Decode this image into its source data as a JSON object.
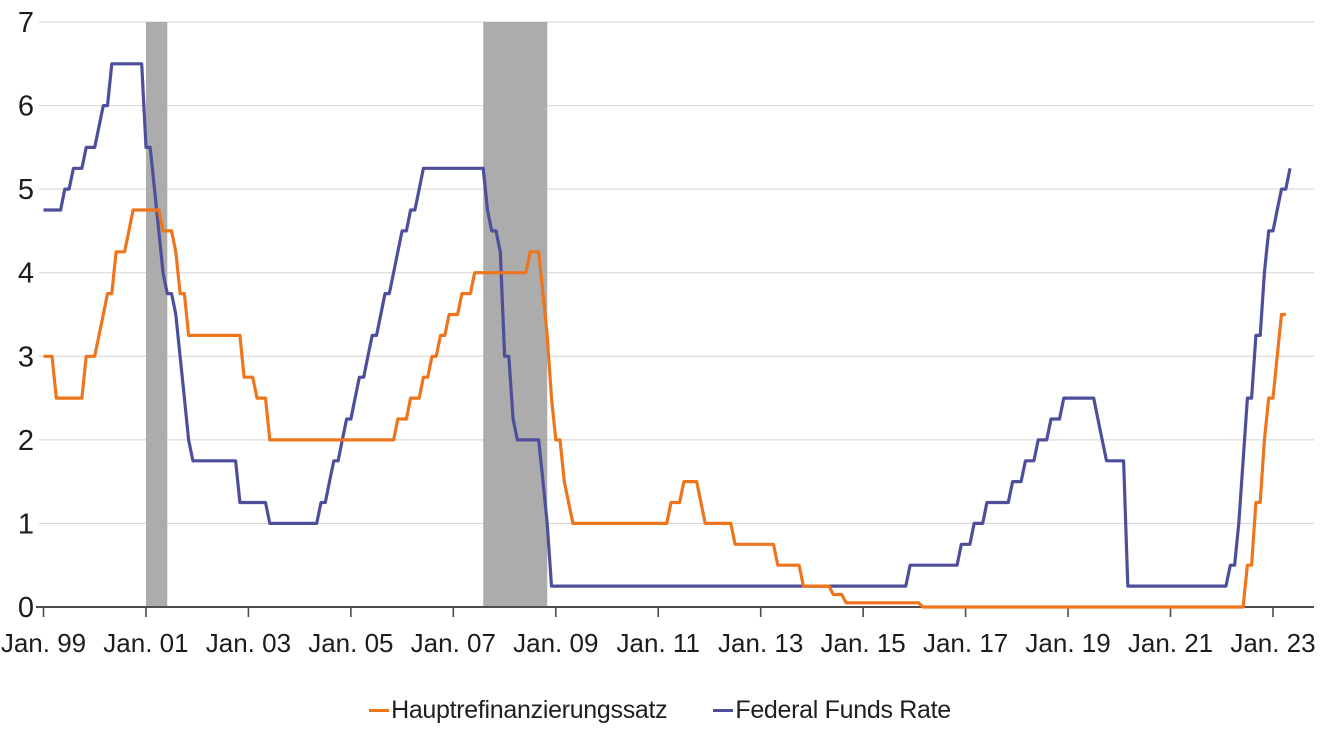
{
  "page": {
    "background": "#ffffff"
  },
  "chart_data": {
    "type": "line",
    "title": "",
    "xlabel": "",
    "ylabel": "",
    "y_axis": {
      "min": 0,
      "max": 7,
      "ticks": [
        "0",
        "1",
        "2",
        "3",
        "4",
        "5",
        "6",
        "7"
      ],
      "gridlines": true,
      "gridline_color": "#DBDBDB"
    },
    "x_axis": {
      "start_month": "1999-01",
      "end_month": "2023-05",
      "tick_labels": [
        "Jan. 99",
        "Jan. 01",
        "Jan. 03",
        "Jan. 05",
        "Jan. 07",
        "Jan. 09",
        "Jan. 11",
        "Jan. 13",
        "Jan. 15",
        "Jan. 17",
        "Jan. 19",
        "Jan. 21",
        "Jan. 23"
      ],
      "tick_month_indices": [
        0,
        24,
        48,
        72,
        96,
        120,
        144,
        168,
        192,
        216,
        240,
        264,
        288
      ]
    },
    "recession_bands": {
      "color": "#ACACAC",
      "ranges": [
        {
          "from": "2001-01",
          "to": "2001-06"
        },
        {
          "from": "2007-08",
          "to": "2008-11"
        }
      ]
    },
    "legend_position": "bottom-center",
    "axis_color": "#4D4D4D",
    "text_color": "#1C1C1C",
    "series": [
      {
        "name": "Hauptrefinanzierungssatz",
        "color": "#EF751D",
        "unit": "percent",
        "segments": [
          [
            "1999-01",
            "1999-03",
            3.0
          ],
          [
            "1999-04",
            "1999-10",
            2.5
          ],
          [
            "1999-11",
            "2000-01",
            3.0
          ],
          [
            "2000-02",
            "2000-02",
            3.25
          ],
          [
            "2000-03",
            "2000-03",
            3.5
          ],
          [
            "2000-04",
            "2000-05",
            3.75
          ],
          [
            "2000-06",
            "2000-08",
            4.25
          ],
          [
            "2000-09",
            "2000-09",
            4.5
          ],
          [
            "2000-10",
            "2001-04",
            4.75
          ],
          [
            "2001-05",
            "2001-07",
            4.5
          ],
          [
            "2001-08",
            "2001-08",
            4.25
          ],
          [
            "2001-09",
            "2001-10",
            3.75
          ],
          [
            "2001-11",
            "2002-11",
            3.25
          ],
          [
            "2002-12",
            "2003-02",
            2.75
          ],
          [
            "2003-03",
            "2003-05",
            2.5
          ],
          [
            "2003-06",
            "2005-11",
            2.0
          ],
          [
            "2005-12",
            "2006-02",
            2.25
          ],
          [
            "2006-03",
            "2006-05",
            2.5
          ],
          [
            "2006-06",
            "2006-07",
            2.75
          ],
          [
            "2006-08",
            "2006-09",
            3.0
          ],
          [
            "2006-10",
            "2006-11",
            3.25
          ],
          [
            "2006-12",
            "2007-02",
            3.5
          ],
          [
            "2007-03",
            "2007-05",
            3.75
          ],
          [
            "2007-06",
            "2008-06",
            4.0
          ],
          [
            "2008-07",
            "2008-09",
            4.25
          ],
          [
            "2008-10",
            "2008-10",
            3.75
          ],
          [
            "2008-11",
            "2008-11",
            3.25
          ],
          [
            "2008-12",
            "2008-12",
            2.5
          ],
          [
            "2009-01",
            "2009-02",
            2.0
          ],
          [
            "2009-03",
            "2009-03",
            1.5
          ],
          [
            "2009-04",
            "2009-04",
            1.25
          ],
          [
            "2009-05",
            "2011-03",
            1.0
          ],
          [
            "2011-04",
            "2011-06",
            1.25
          ],
          [
            "2011-07",
            "2011-10",
            1.5
          ],
          [
            "2011-11",
            "2011-11",
            1.25
          ],
          [
            "2011-12",
            "2012-06",
            1.0
          ],
          [
            "2012-07",
            "2013-04",
            0.75
          ],
          [
            "2013-05",
            "2013-10",
            0.5
          ],
          [
            "2013-11",
            "2014-05",
            0.25
          ],
          [
            "2014-06",
            "2014-08",
            0.15
          ],
          [
            "2014-09",
            "2016-02",
            0.05
          ],
          [
            "2016-03",
            "2022-06",
            0.0
          ],
          [
            "2022-07",
            "2022-08",
            0.5
          ],
          [
            "2022-09",
            "2022-10",
            1.25
          ],
          [
            "2022-11",
            "2022-11",
            2.0
          ],
          [
            "2022-12",
            "2023-01",
            2.5
          ],
          [
            "2023-02",
            "2023-02",
            3.0
          ],
          [
            "2023-03",
            "2023-04",
            3.5
          ]
        ]
      },
      {
        "name": "Federal Funds Rate",
        "color": "#4E4F9B",
        "unit": "percent",
        "segments": [
          [
            "1999-01",
            "1999-05",
            4.75
          ],
          [
            "1999-06",
            "1999-07",
            5.0
          ],
          [
            "1999-08",
            "1999-10",
            5.25
          ],
          [
            "1999-11",
            "2000-01",
            5.5
          ],
          [
            "2000-02",
            "2000-02",
            5.75
          ],
          [
            "2000-03",
            "2000-04",
            6.0
          ],
          [
            "2000-05",
            "2000-12",
            6.5
          ],
          [
            "2001-01",
            "2001-02",
            5.5
          ],
          [
            "2001-03",
            "2001-03",
            5.0
          ],
          [
            "2001-04",
            "2001-04",
            4.5
          ],
          [
            "2001-05",
            "2001-05",
            4.0
          ],
          [
            "2001-06",
            "2001-07",
            3.75
          ],
          [
            "2001-08",
            "2001-08",
            3.5
          ],
          [
            "2001-09",
            "2001-09",
            3.0
          ],
          [
            "2001-10",
            "2001-10",
            2.5
          ],
          [
            "2001-11",
            "2001-11",
            2.0
          ],
          [
            "2001-12",
            "2002-10",
            1.75
          ],
          [
            "2002-11",
            "2003-05",
            1.25
          ],
          [
            "2003-06",
            "2004-05",
            1.0
          ],
          [
            "2004-06",
            "2004-07",
            1.25
          ],
          [
            "2004-08",
            "2004-08",
            1.5
          ],
          [
            "2004-09",
            "2004-10",
            1.75
          ],
          [
            "2004-11",
            "2004-11",
            2.0
          ],
          [
            "2004-12",
            "2005-01",
            2.25
          ],
          [
            "2005-02",
            "2005-02",
            2.5
          ],
          [
            "2005-03",
            "2005-04",
            2.75
          ],
          [
            "2005-05",
            "2005-05",
            3.0
          ],
          [
            "2005-06",
            "2005-07",
            3.25
          ],
          [
            "2005-08",
            "2005-08",
            3.5
          ],
          [
            "2005-09",
            "2005-10",
            3.75
          ],
          [
            "2005-11",
            "2005-11",
            4.0
          ],
          [
            "2005-12",
            "2005-12",
            4.25
          ],
          [
            "2006-01",
            "2006-02",
            4.5
          ],
          [
            "2006-03",
            "2006-04",
            4.75
          ],
          [
            "2006-05",
            "2006-05",
            5.0
          ],
          [
            "2006-06",
            "2007-08",
            5.25
          ],
          [
            "2007-09",
            "2007-09",
            4.75
          ],
          [
            "2007-10",
            "2007-11",
            4.5
          ],
          [
            "2007-12",
            "2007-12",
            4.25
          ],
          [
            "2008-01",
            "2008-02",
            3.0
          ],
          [
            "2008-03",
            "2008-03",
            2.25
          ],
          [
            "2008-04",
            "2008-09",
            2.0
          ],
          [
            "2008-10",
            "2008-10",
            1.5
          ],
          [
            "2008-11",
            "2008-11",
            1.0
          ],
          [
            "2008-12",
            "2015-11",
            0.25
          ],
          [
            "2015-12",
            "2016-11",
            0.5
          ],
          [
            "2016-12",
            "2017-02",
            0.75
          ],
          [
            "2017-03",
            "2017-05",
            1.0
          ],
          [
            "2017-06",
            "2017-11",
            1.25
          ],
          [
            "2017-12",
            "2018-02",
            1.5
          ],
          [
            "2018-03",
            "2018-05",
            1.75
          ],
          [
            "2018-06",
            "2018-08",
            2.0
          ],
          [
            "2018-09",
            "2018-11",
            2.25
          ],
          [
            "2018-12",
            "2019-07",
            2.5
          ],
          [
            "2019-08",
            "2019-08",
            2.25
          ],
          [
            "2019-09",
            "2019-09",
            2.0
          ],
          [
            "2019-10",
            "2020-02",
            1.75
          ],
          [
            "2020-03",
            "2022-02",
            0.25
          ],
          [
            "2022-03",
            "2022-04",
            0.5
          ],
          [
            "2022-05",
            "2022-05",
            1.0
          ],
          [
            "2022-06",
            "2022-06",
            1.75
          ],
          [
            "2022-07",
            "2022-08",
            2.5
          ],
          [
            "2022-09",
            "2022-10",
            3.25
          ],
          [
            "2022-11",
            "2022-11",
            4.0
          ],
          [
            "2022-12",
            "2023-01",
            4.5
          ],
          [
            "2023-02",
            "2023-02",
            4.75
          ],
          [
            "2023-03",
            "2023-04",
            5.0
          ],
          [
            "2023-05",
            "2023-05",
            5.25
          ]
        ]
      }
    ]
  }
}
